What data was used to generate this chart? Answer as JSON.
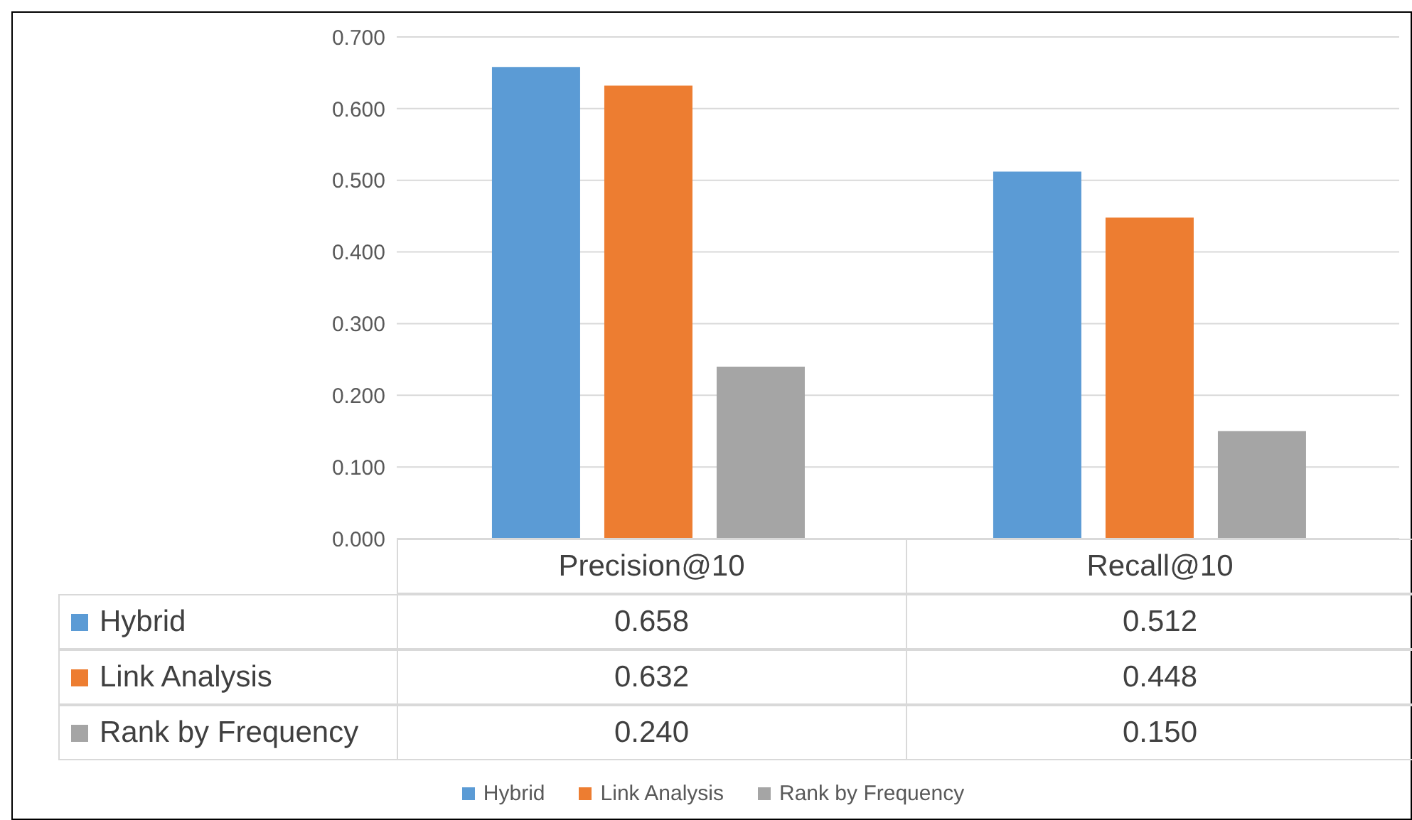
{
  "chart_data": {
    "type": "bar",
    "categories": [
      "Precision@10",
      "Recall@10"
    ],
    "series": [
      {
        "name": "Hybrid",
        "color": "#5b9bd5",
        "values": [
          0.658,
          0.512
        ],
        "value_labels": [
          "0.658",
          "0.512"
        ]
      },
      {
        "name": "Link Analysis",
        "color": "#ed7d31",
        "values": [
          0.632,
          0.448
        ],
        "value_labels": [
          "0.632",
          "0.448"
        ]
      },
      {
        "name": "Rank by Frequency",
        "color": "#a5a5a5",
        "values": [
          0.24,
          0.15
        ],
        "value_labels": [
          "0.240",
          "0.150"
        ]
      }
    ],
    "ylim": [
      0,
      0.7
    ],
    "yticks": [
      {
        "value": 0,
        "label": "0.000"
      },
      {
        "value": 0.1,
        "label": "0.100"
      },
      {
        "value": 0.2,
        "label": "0.200"
      },
      {
        "value": 0.3,
        "label": "0.300"
      },
      {
        "value": 0.4,
        "label": "0.400"
      },
      {
        "value": 0.5,
        "label": "0.500"
      },
      {
        "value": 0.6,
        "label": "0.600"
      },
      {
        "value": 0.7,
        "label": "0.700"
      }
    ],
    "grid": "y",
    "legend": "bottom"
  }
}
